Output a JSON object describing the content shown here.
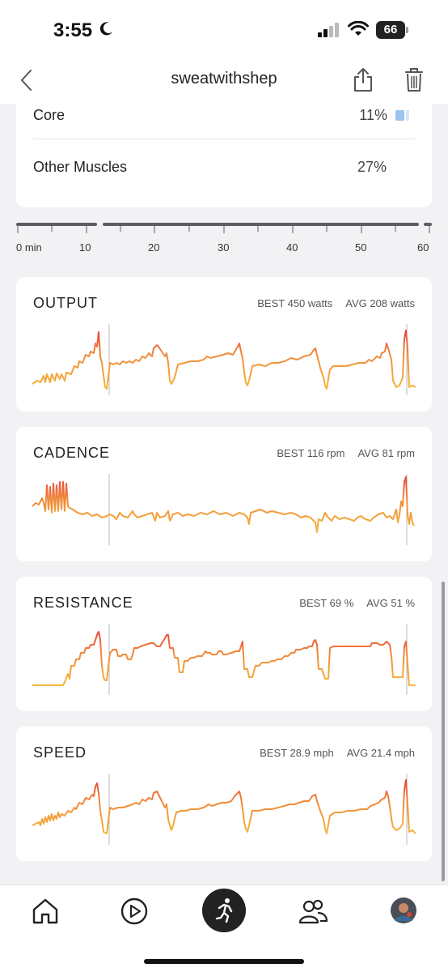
{
  "status_bar": {
    "time": "3:55",
    "battery": "66"
  },
  "nav": {
    "title": "sweatwithshep",
    "back_icon": "chevron-left-icon",
    "share_icon": "share-icon",
    "delete_icon": "trash-icon"
  },
  "muscles": [
    {
      "name": "Core",
      "percent": "11%"
    },
    {
      "name": "Other Muscles",
      "percent": "27%"
    }
  ],
  "timeline": {
    "ticks": [
      "0 min",
      "10",
      "20",
      "30",
      "40",
      "50",
      "60"
    ]
  },
  "metrics": [
    {
      "title": "OUTPUT",
      "best": "BEST 450 watts",
      "avg": "AVG 208 watts"
    },
    {
      "title": "CADENCE",
      "best": "BEST 116 rpm",
      "avg": "AVG 81 rpm"
    },
    {
      "title": "RESISTANCE",
      "best": "BEST 69 %",
      "avg": "AVG 51 %"
    },
    {
      "title": "SPEED",
      "best": "BEST 28.9 mph",
      "avg": "AVG 21.4 mph"
    }
  ],
  "colors": {
    "accent_orange": "#f08a3c",
    "accent_red": "#e8453c",
    "accent_yellow": "#f5b63b",
    "core_bar": "#9cc4f0"
  },
  "tabbar": {
    "items": [
      "home-icon",
      "play-icon",
      "activity-icon",
      "community-icon",
      "profile-avatar"
    ]
  }
}
